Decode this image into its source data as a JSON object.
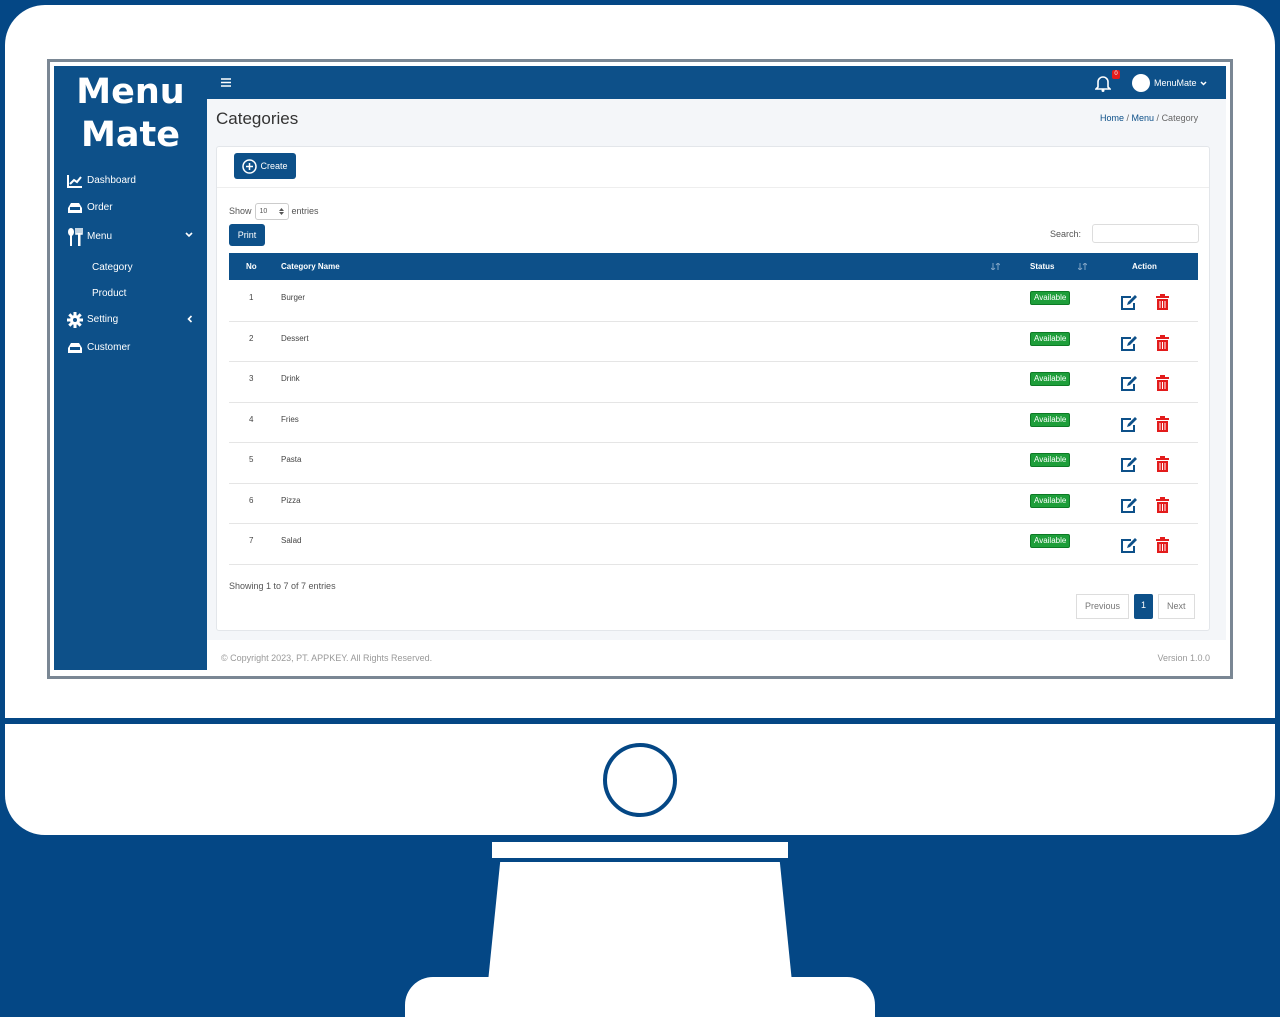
{
  "app": {
    "logo_line1": "Menu",
    "logo_line2": "Mate"
  },
  "sidebar": {
    "items": [
      {
        "label": "Dashboard",
        "icon": "chart-line-icon"
      },
      {
        "label": "Order",
        "icon": "inbox-icon"
      },
      {
        "label": "Menu",
        "icon": "utensils-icon",
        "expanded": true,
        "children": [
          {
            "label": "Category"
          },
          {
            "label": "Product"
          }
        ]
      },
      {
        "label": "Setting",
        "icon": "gear-icon"
      },
      {
        "label": "Customer",
        "icon": "inbox-icon"
      }
    ]
  },
  "topbar": {
    "menu_icon": "hamburger-icon",
    "notification_count": "0",
    "user": "MenuMate"
  },
  "page": {
    "title": "Categories",
    "breadcrumb": [
      "Home",
      "Menu",
      "Category"
    ]
  },
  "toolbar": {
    "create_label": "Create",
    "show_label": "Show",
    "entries_value": "10",
    "entries_label": "entries",
    "print_label": "Print",
    "search_label": "Search:",
    "search_value": ""
  },
  "table": {
    "columns": [
      "No",
      "Category Name",
      "Status",
      "Action"
    ],
    "rows": [
      {
        "no": "1",
        "name": "Burger",
        "status": "Available"
      },
      {
        "no": "2",
        "name": "Dessert",
        "status": "Available"
      },
      {
        "no": "3",
        "name": "Drink",
        "status": "Available"
      },
      {
        "no": "4",
        "name": "Fries",
        "status": "Available"
      },
      {
        "no": "5",
        "name": "Pasta",
        "status": "Available"
      },
      {
        "no": "6",
        "name": "Pizza",
        "status": "Available"
      },
      {
        "no": "7",
        "name": "Salad",
        "status": "Available"
      }
    ]
  },
  "pagination": {
    "info": "Showing 1 to 7 of 7 entries",
    "previous": "Previous",
    "current": "1",
    "next": "Next"
  },
  "footer": {
    "copyright": "© Copyright 2023, PT. APPKEY. All Rights Reserved.",
    "version": "Version 1.0.0"
  },
  "colors": {
    "primary": "#0d5089",
    "background": "#044785",
    "success": "#1e9e3a",
    "danger": "#e31b1b"
  }
}
